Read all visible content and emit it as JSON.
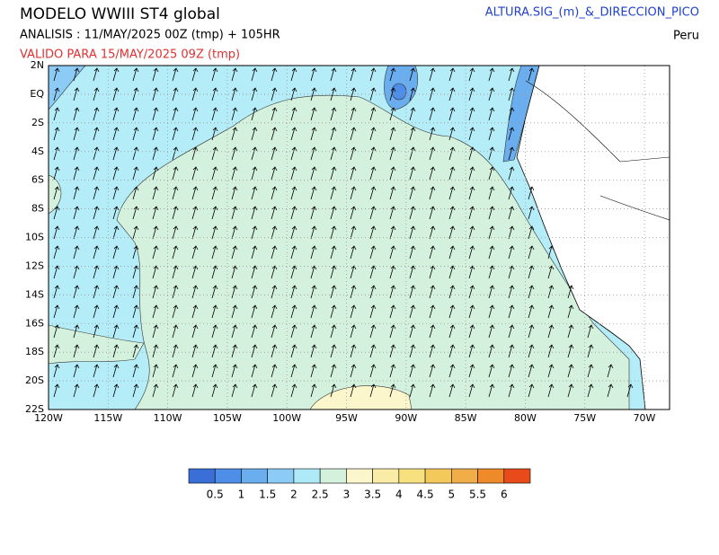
{
  "header": {
    "title": "MODELO WWIII ST4 global",
    "analysis": "ANALISIS : 11/MAY/2025 00Z  (tmp) + 105HR",
    "valid": "VALIDO PARA  15/MAY/2025 09Z  (tmp)",
    "variable": "ALTURA.SIG_(m)_&_DIRECCION_PICO",
    "region": "Peru"
  },
  "map": {
    "lat_labels": [
      "2N",
      "EQ",
      "2S",
      "4S",
      "6S",
      "8S",
      "10S",
      "12S",
      "14S",
      "16S",
      "18S",
      "20S",
      "22S"
    ],
    "lon_labels": [
      "120W",
      "115W",
      "110W",
      "105W",
      "100W",
      "95W",
      "90W",
      "85W",
      "80W",
      "75W",
      "70W"
    ]
  },
  "colorbar": {
    "colors": [
      "#3a6fd8",
      "#4f8ee8",
      "#6aaef0",
      "#8ccbf5",
      "#aee9f7",
      "#d3f1dc",
      "#fcf6cc",
      "#f9eca6",
      "#f7e17f",
      "#f4c95b",
      "#f1ad48",
      "#ee8a2a",
      "#e84a1a"
    ],
    "labels": [
      0.5,
      1,
      1.5,
      2,
      2.5,
      3,
      3.5,
      4,
      4.5,
      5,
      5.5,
      6
    ]
  }
}
